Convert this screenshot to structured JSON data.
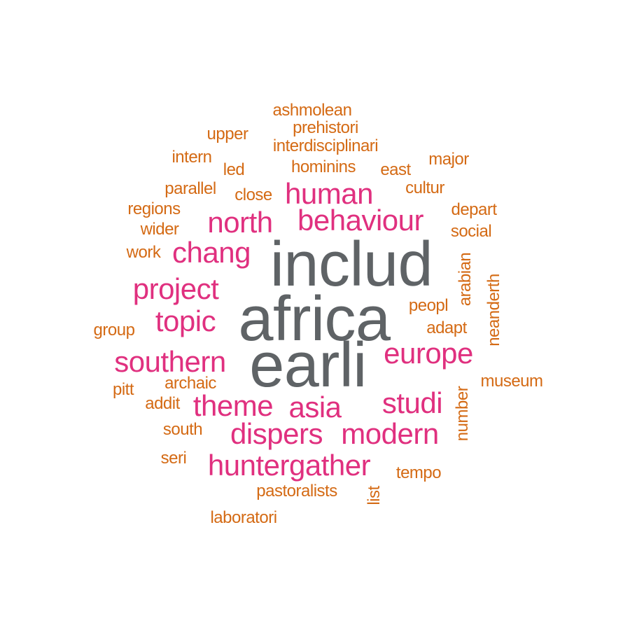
{
  "palette": {
    "large": "#5f6366",
    "medium": "#e0307f",
    "small": "#d46a14"
  },
  "words": [
    {
      "text": "includ",
      "tier": "large",
      "weight": 10
    },
    {
      "text": "africa",
      "tier": "large",
      "weight": 10
    },
    {
      "text": "earli",
      "tier": "large",
      "weight": 10
    },
    {
      "text": "human",
      "tier": "medium",
      "weight": 5
    },
    {
      "text": "behaviour",
      "tier": "medium",
      "weight": 5
    },
    {
      "text": "north",
      "tier": "medium",
      "weight": 5
    },
    {
      "text": "chang",
      "tier": "medium",
      "weight": 5
    },
    {
      "text": "project",
      "tier": "medium",
      "weight": 5
    },
    {
      "text": "topic",
      "tier": "medium",
      "weight": 5
    },
    {
      "text": "southern",
      "tier": "medium",
      "weight": 5
    },
    {
      "text": "europe",
      "tier": "medium",
      "weight": 5
    },
    {
      "text": "theme",
      "tier": "medium",
      "weight": 5
    },
    {
      "text": "asia",
      "tier": "medium",
      "weight": 5
    },
    {
      "text": "studi",
      "tier": "medium",
      "weight": 5
    },
    {
      "text": "dispers",
      "tier": "medium",
      "weight": 5
    },
    {
      "text": "modern",
      "tier": "medium",
      "weight": 5
    },
    {
      "text": "huntergather",
      "tier": "medium",
      "weight": 5
    },
    {
      "text": "ashmolean",
      "tier": "small",
      "weight": 2
    },
    {
      "text": "prehistori",
      "tier": "small",
      "weight": 2
    },
    {
      "text": "upper",
      "tier": "small",
      "weight": 2
    },
    {
      "text": "interdisciplinari",
      "tier": "small",
      "weight": 2
    },
    {
      "text": "intern",
      "tier": "small",
      "weight": 2
    },
    {
      "text": "led",
      "tier": "small",
      "weight": 2
    },
    {
      "text": "hominins",
      "tier": "small",
      "weight": 2
    },
    {
      "text": "east",
      "tier": "small",
      "weight": 2
    },
    {
      "text": "major",
      "tier": "small",
      "weight": 2
    },
    {
      "text": "parallel",
      "tier": "small",
      "weight": 2
    },
    {
      "text": "close",
      "tier": "small",
      "weight": 2
    },
    {
      "text": "cultur",
      "tier": "small",
      "weight": 2
    },
    {
      "text": "regions",
      "tier": "small",
      "weight": 2
    },
    {
      "text": "depart",
      "tier": "small",
      "weight": 2
    },
    {
      "text": "wider",
      "tier": "small",
      "weight": 2
    },
    {
      "text": "social",
      "tier": "small",
      "weight": 2
    },
    {
      "text": "work",
      "tier": "small",
      "weight": 2
    },
    {
      "text": "arabian",
      "tier": "small",
      "weight": 2
    },
    {
      "text": "peopl",
      "tier": "small",
      "weight": 2
    },
    {
      "text": "neanderth",
      "tier": "small",
      "weight": 2
    },
    {
      "text": "group",
      "tier": "small",
      "weight": 2
    },
    {
      "text": "adapt",
      "tier": "small",
      "weight": 2
    },
    {
      "text": "pitt",
      "tier": "small",
      "weight": 2
    },
    {
      "text": "archaic",
      "tier": "small",
      "weight": 2
    },
    {
      "text": "museum",
      "tier": "small",
      "weight": 2
    },
    {
      "text": "addit",
      "tier": "small",
      "weight": 2
    },
    {
      "text": "number",
      "tier": "small",
      "weight": 2
    },
    {
      "text": "south",
      "tier": "small",
      "weight": 2
    },
    {
      "text": "seri",
      "tier": "small",
      "weight": 2
    },
    {
      "text": "tempo",
      "tier": "small",
      "weight": 2
    },
    {
      "text": "pastoralists",
      "tier": "small",
      "weight": 2
    },
    {
      "text": "list",
      "tier": "small",
      "weight": 2
    },
    {
      "text": "laboratori",
      "tier": "small",
      "weight": 2
    }
  ]
}
